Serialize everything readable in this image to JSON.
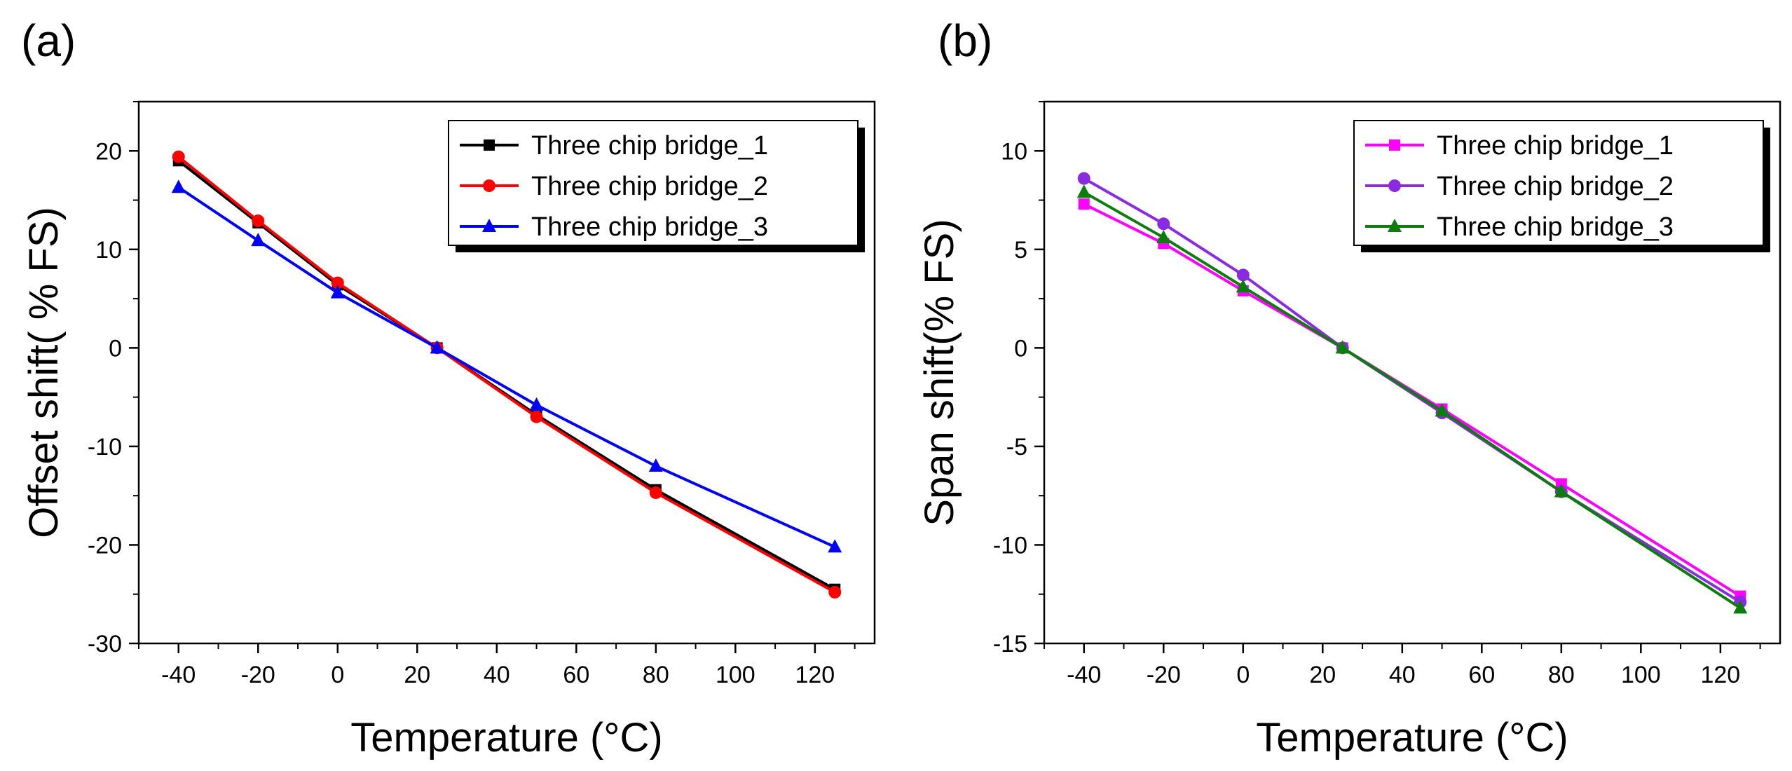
{
  "chart_data": [
    {
      "type": "line",
      "panel_label": "(a)",
      "title": "",
      "xlabel": "Temperature (°C)",
      "ylabel": "Offset shift( % FS)",
      "xlim": [
        -50,
        135
      ],
      "ylim": [
        -30,
        25
      ],
      "xticks": [
        -40,
        -20,
        0,
        20,
        40,
        60,
        80,
        100,
        120
      ],
      "yticks": [
        -30,
        -20,
        -10,
        0,
        10,
        20
      ],
      "x": [
        -40,
        -20,
        0,
        25,
        50,
        80,
        125
      ],
      "legend_position": "top-right",
      "grid": false,
      "series": [
        {
          "name": "Three chip bridge_1",
          "color": "#000000",
          "marker": "square",
          "values": [
            19.0,
            12.7,
            6.4,
            0,
            -6.8,
            -14.4,
            -24.5
          ]
        },
        {
          "name": "Three chip bridge_2",
          "color": "#ff0000",
          "marker": "circle",
          "values": [
            19.4,
            12.9,
            6.6,
            0,
            -7.0,
            -14.7,
            -24.8
          ]
        },
        {
          "name": "Three chip bridge_3",
          "color": "#0000ff",
          "marker": "triangle",
          "values": [
            16.3,
            10.9,
            5.6,
            0,
            -5.8,
            -12.0,
            -20.2
          ]
        }
      ]
    },
    {
      "type": "line",
      "panel_label": "(b)",
      "title": "",
      "xlabel": "Temperature (°C)",
      "ylabel": "Span shift(% FS)",
      "xlim": [
        -50,
        135
      ],
      "ylim": [
        -15,
        12.5
      ],
      "xticks": [
        -40,
        -20,
        0,
        20,
        40,
        60,
        80,
        100,
        120
      ],
      "yticks": [
        -15,
        -10,
        -5,
        0,
        5,
        10
      ],
      "x": [
        -40,
        -20,
        0,
        25,
        50,
        80,
        125
      ],
      "legend_position": "top-right",
      "grid": false,
      "series": [
        {
          "name": "Three chip bridge_1",
          "color": "#ff00ff",
          "marker": "square",
          "values": [
            7.3,
            5.3,
            2.9,
            0,
            -3.1,
            -6.9,
            -12.6
          ]
        },
        {
          "name": "Three chip bridge_2",
          "color": "#8a2be2",
          "marker": "circle",
          "values": [
            8.6,
            6.3,
            3.7,
            0,
            -3.3,
            -7.3,
            -12.9
          ]
        },
        {
          "name": "Three chip bridge_3",
          "color": "#0a7d0a",
          "marker": "triangle",
          "values": [
            7.9,
            5.6,
            3.1,
            0,
            -3.2,
            -7.3,
            -13.2
          ]
        }
      ]
    }
  ]
}
